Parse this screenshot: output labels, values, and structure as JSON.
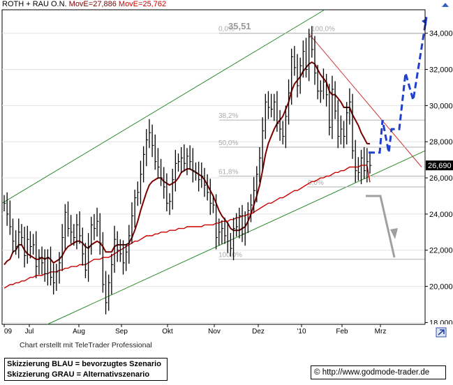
{
  "header": {
    "name": "ROTH + RAU O.N.",
    "ma1": "MovE=27,886",
    "ma2": "MovE=25,762"
  },
  "chart_data": {
    "type": "line",
    "xlabels": [
      "09",
      "Jul",
      "Aug",
      "Sep",
      "Okt",
      "Nov",
      "Dez",
      "'10",
      "Feb",
      "Mrz"
    ],
    "ytick_labels": [
      "18,000",
      "20,000",
      "22,000",
      "24,000",
      "26,000",
      "28,000",
      "30,000",
      "32,000",
      "34,000"
    ],
    "yticks": [
      18,
      20,
      22,
      24,
      26,
      28,
      30,
      32,
      34
    ],
    "ylim": [
      17.9,
      35.3
    ],
    "last_price": 26.69,
    "last_price_label": "26,690",
    "high_label": "35,51",
    "price_series": {
      "name": "ROTH + RAU O.N.",
      "color": "#000000",
      "values": [
        24.6,
        24.0,
        23.3,
        22.5,
        22.2,
        23.0,
        22.7,
        21.7,
        22.6,
        22.2,
        22.3,
        21.1,
        21.6,
        21.3,
        20.7,
        21.6,
        20.5,
        20.2,
        20.8,
        21.3,
        22.7,
        24.1,
        23.2,
        23.0,
        22.7,
        23.4,
        22.8,
        21.8,
        20.9,
        22.2,
        23.4,
        23.2,
        23.6,
        22.4,
        20.1,
        19.1,
        20.2,
        21.2,
        22.6,
        22.0,
        21.8,
        21.3,
        21.9,
        22.8,
        23.9,
        24.9,
        25.2,
        26.2,
        27.3,
        28.1,
        28.5,
        27.8,
        26.9,
        26.6,
        26.0,
        25.5,
        24.6,
        24.7,
        25.9,
        26.8,
        26.9,
        27.1,
        26.8,
        27.2,
        26.9,
        26.4,
        26.3,
        25.9,
        26.1,
        25.6,
        25.2,
        24.6,
        24.5,
        22.7,
        23.0,
        23.2,
        22.8,
        22.5,
        22.1,
        23.2,
        23.3,
        23.9,
        22.9,
        23.4,
        24.2,
        24.5,
        25.3,
        26.2,
        27.1,
        28.6,
        30.2,
        29.9,
        29.8,
        30.2,
        29.0,
        28.7,
        28.3,
        29.4,
        30.7,
        32.7,
        32.1,
        31.1,
        32.2,
        33.0,
        32.0,
        33.8,
        33.1,
        31.8,
        30.8,
        30.8,
        31.3,
        30.6,
        28.8,
        30.9,
        29.7,
        28.3,
        28.7,
        28.3,
        29.6,
        30.2,
        27.5,
        26.4,
        26.3,
        27.1,
        26.4,
        26.9,
        26.69
      ]
    },
    "moving_averages": [
      {
        "name": "MovE=27,886",
        "color": "#7a0000",
        "values": [
          21.2,
          21.4,
          21.5,
          21.9,
          22.0,
          22.3,
          22.3,
          22.0,
          21.8,
          21.7,
          21.6,
          21.5,
          21.5,
          21.6,
          21.5,
          21.6,
          21.5,
          21.3,
          21.4,
          21.5,
          21.7,
          22.0,
          22.2,
          22.3,
          22.4,
          22.5,
          22.5,
          22.4,
          22.2,
          22.1,
          22.3,
          22.4,
          22.5,
          22.4,
          22.2,
          21.9,
          21.9,
          21.9,
          22.2,
          22.3,
          22.3,
          22.3,
          22.3,
          22.4,
          22.7,
          23.1,
          23.6,
          24.2,
          24.7,
          25.2,
          25.6,
          25.8,
          25.9,
          26.0,
          26.0,
          25.8,
          25.7,
          25.6,
          25.7,
          25.8,
          26.0,
          26.3,
          26.4,
          26.5,
          26.5,
          26.4,
          26.3,
          26.2,
          26.1,
          25.9,
          25.6,
          25.3,
          25.0,
          24.6,
          24.2,
          23.9,
          23.7,
          23.5,
          23.2,
          23.1,
          23.1,
          23.1,
          23.2,
          23.3,
          23.6,
          24.0,
          24.5,
          25.0,
          25.6,
          26.4,
          27.3,
          27.9,
          28.3,
          28.7,
          29.0,
          29.2,
          29.4,
          29.8,
          30.2,
          30.8,
          31.2,
          31.4,
          31.6,
          31.9,
          32.1,
          32.3,
          32.4,
          32.3,
          32.0,
          31.7,
          31.5,
          31.3,
          30.8,
          30.6,
          30.6,
          30.4,
          30.2,
          29.9,
          29.9,
          29.9,
          29.5,
          29.2,
          28.9,
          28.5,
          28.2,
          27.9,
          27.89
        ]
      },
      {
        "name": "MovE=25,762",
        "color": "#cc0000",
        "values": [
          19.9,
          20.0,
          20.1,
          20.1,
          20.2,
          20.2,
          20.3,
          20.3,
          20.4,
          20.5,
          20.5,
          20.6,
          20.6,
          20.6,
          20.7,
          20.7,
          20.8,
          20.8,
          20.8,
          20.9,
          20.9,
          21.0,
          21.0,
          21.1,
          21.1,
          21.1,
          21.2,
          21.2,
          21.2,
          21.3,
          21.4,
          21.5,
          21.5,
          21.5,
          21.6,
          21.6,
          21.6,
          21.7,
          21.8,
          21.9,
          22.0,
          22.1,
          22.2,
          22.3,
          22.4,
          22.5,
          22.5,
          22.6,
          22.7,
          22.8,
          22.8,
          22.8,
          22.9,
          22.9,
          23.0,
          23.0,
          23.0,
          23.1,
          23.1,
          23.1,
          23.2,
          23.2,
          23.2,
          23.3,
          23.3,
          23.3,
          23.3,
          23.3,
          23.3,
          23.4,
          23.4,
          23.4,
          23.4,
          23.5,
          23.5,
          23.6,
          23.6,
          23.6,
          23.7,
          23.7,
          23.8,
          23.8,
          23.9,
          23.9,
          24.0,
          24.0,
          24.1,
          24.2,
          24.3,
          24.4,
          24.5,
          24.6,
          24.6,
          24.7,
          24.8,
          24.9,
          24.9,
          25.0,
          25.1,
          25.2,
          25.3,
          25.3,
          25.4,
          25.5,
          25.6,
          25.7,
          25.8,
          25.8,
          25.9,
          26.0,
          26.0,
          26.1,
          26.1,
          26.2,
          26.3,
          26.3,
          26.4,
          26.4,
          26.5,
          26.6,
          26.6,
          26.6,
          26.6,
          26.7,
          26.7,
          26.7,
          25.76
        ]
      }
    ],
    "fibonacci": {
      "levels": [
        {
          "label": "0,0%",
          "value": 34.0
        },
        {
          "label": "38,2%",
          "value": 29.2
        },
        {
          "label": "50,0%",
          "value": 27.7
        },
        {
          "label": "61,8%",
          "value": 26.1
        },
        {
          "label": "100,0%",
          "value": 21.5
        },
        {
          "label": "0,0%",
          "value": 25.5
        },
        {
          "label": "100,0%",
          "value": 34.0
        }
      ]
    },
    "trend_channel": {
      "upper_line": "green",
      "lower_line": "green",
      "downtrend_line": "red"
    },
    "scenarios": [
      {
        "name": "bevorzugtes Szenario",
        "color": "#1f3fcc",
        "path": [
          27.4,
          27.4,
          29.2,
          27.4,
          28.7,
          28.7,
          31.8,
          30.3,
          34.9
        ]
      },
      {
        "name": "Alternativszenario",
        "color": "#a0a0a0",
        "path": [
          25.0,
          25.0,
          21.6
        ]
      }
    ],
    "grid": true,
    "legend": "top-left"
  },
  "footer": {
    "credit": "Chart erstellt mit TeleTrader Professional",
    "note_blue": "Skizzierung BLAU = bevorzugtes Szenario",
    "note_grey": "Skizzierung GRAU = Alternativszenario",
    "url": "http://www.godmode-trader.de",
    "copyright_symbol": "©"
  },
  "icons": {
    "settings": "chart-settings-icon"
  }
}
